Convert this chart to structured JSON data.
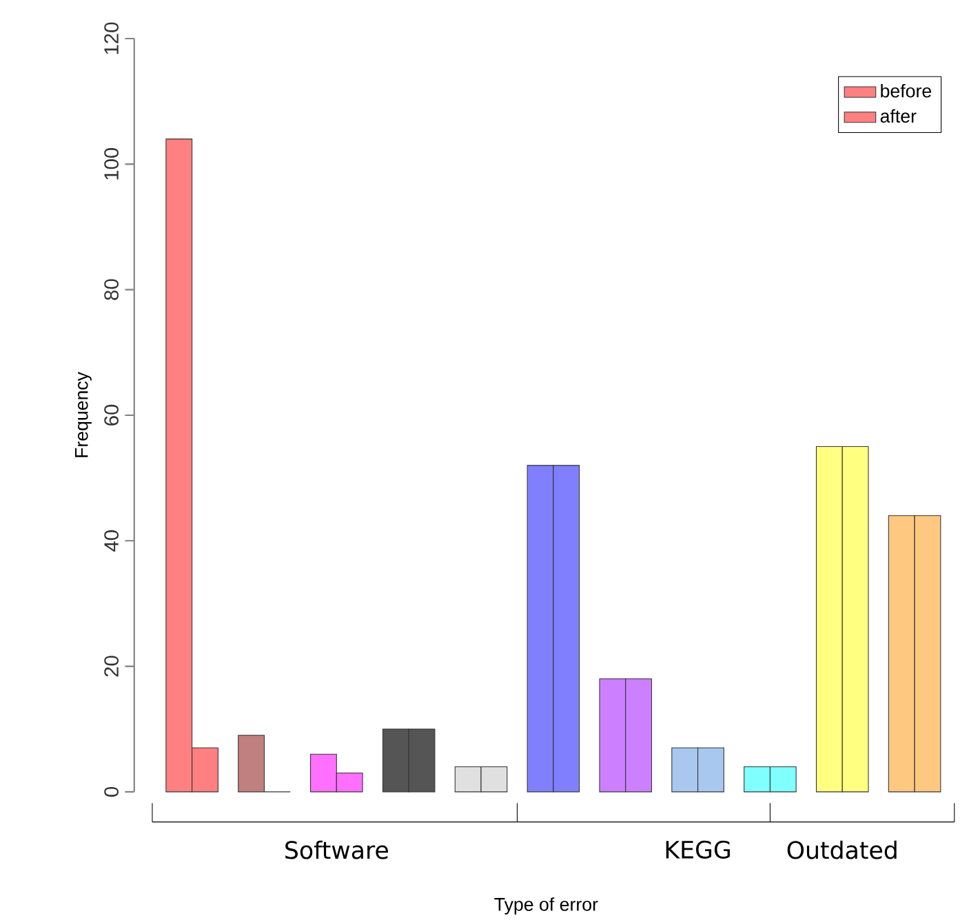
{
  "chart_data": {
    "type": "bar",
    "xlabel": "Type of error",
    "ylabel": "Frequency",
    "categories": [
      null,
      null,
      "Software",
      null,
      null,
      null,
      null,
      "KEGG",
      null,
      "Outdated",
      null
    ],
    "series": [
      {
        "name": "before",
        "color": "#ff8080",
        "colors": [
          "#ff8080",
          "#c08080",
          "#ff70ff",
          "#555555",
          "#e0e0e0",
          "#8080ff",
          "#cc80ff",
          "#a8c8f0",
          "#80ffff",
          "#ffff80",
          "#ffc880"
        ],
        "values": [
          104,
          9,
          6,
          10,
          4,
          52,
          18,
          7,
          4,
          55,
          44
        ]
      },
      {
        "name": "after",
        "color": "#ff8080",
        "colors": [
          "#ff8080",
          "#c08080",
          "#ff70ff",
          "#555555",
          "#e0e0e0",
          "#8080ff",
          "#cc80ff",
          "#a8c8f0",
          "#80ffff",
          "#ffff80",
          "#ffc880"
        ],
        "values": [
          7,
          0,
          3,
          10,
          4,
          52,
          18,
          7,
          4,
          55,
          44
        ]
      }
    ],
    "ylim": [
      0,
      120
    ],
    "yticks": [
      0,
      20,
      40,
      60,
      80,
      100,
      120
    ],
    "legend": "top right"
  }
}
